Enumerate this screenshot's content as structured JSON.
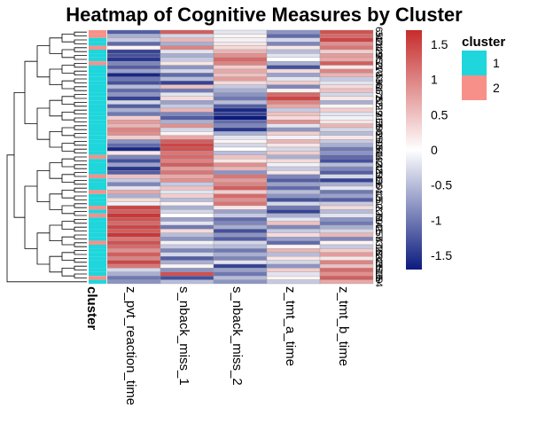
{
  "chart_data": {
    "type": "heatmap",
    "title": "Heatmap of Cognitive Measures by Cluster",
    "columns": [
      "z_pvt_reaction_time",
      "s_nback_miss_1",
      "s_nback_miss_2",
      "z_tmt_a_time",
      "z_tmt_b_time"
    ],
    "annotation_label": "cluster",
    "annotation_legend": {
      "title": "cluster",
      "levels": [
        "1",
        "2"
      ],
      "colors": [
        "#1ed6db",
        "#f8908a"
      ]
    },
    "color_scale": {
      "min": -1.7,
      "mid": 0,
      "max": 1.7,
      "colors": [
        "#0b1b7e",
        "#ffffff",
        "#c62c2c"
      ],
      "ticks": [
        1.5,
        1,
        0.5,
        0,
        -0.5,
        -1,
        -1.5
      ]
    },
    "row_labels": [
      "65",
      "31",
      "40",
      "24",
      "12",
      "49",
      "9",
      "33",
      "53",
      "27",
      "10",
      "4",
      "58",
      "36",
      "44",
      "17",
      "62",
      "8",
      "55",
      "21",
      "29",
      "2",
      "46",
      "13",
      "38",
      "50",
      "6",
      "26",
      "59",
      "15",
      "34",
      "61",
      "19",
      "42",
      "3",
      "48",
      "23",
      "56",
      "11",
      "30",
      "64",
      "1",
      "45",
      "20",
      "52",
      "7",
      "37",
      "28",
      "60",
      "14",
      "41",
      "25",
      "57",
      "5",
      "47",
      "32",
      "18",
      "63",
      "22",
      "43",
      "35",
      "51",
      "16",
      "39",
      "54"
    ],
    "clusters": [
      2,
      2,
      1,
      1,
      2,
      1,
      1,
      1,
      2,
      1,
      1,
      1,
      1,
      1,
      1,
      1,
      1,
      1,
      1,
      1,
      1,
      1,
      1,
      1,
      1,
      1,
      1,
      1,
      1,
      1,
      1,
      1,
      2,
      1,
      1,
      1,
      1,
      2,
      1,
      1,
      1,
      2,
      1,
      1,
      1,
      2,
      1,
      2,
      1,
      1,
      1,
      1,
      1,
      1,
      2,
      1,
      1,
      1,
      1,
      1,
      1,
      1,
      1,
      2,
      1
    ],
    "values": [
      [
        -1.2,
        1.3,
        -0.2,
        -0.8,
        1.4
      ],
      [
        -0.6,
        -0.3,
        0.1,
        -1.1,
        1.2
      ],
      [
        -0.4,
        0.6,
        -0.1,
        -0.3,
        1.5
      ],
      [
        -1.1,
        -0.6,
        0.2,
        -0.9,
        0.9
      ],
      [
        0.1,
        1.0,
        0.3,
        0.2,
        1.1
      ],
      [
        -1.4,
        -0.2,
        0.6,
        -0.5,
        0.4
      ],
      [
        -1.3,
        -0.6,
        0.9,
        -0.2,
        0.8
      ],
      [
        -1.5,
        -0.4,
        1.2,
        0.0,
        0.7
      ],
      [
        -0.9,
        0.2,
        1.0,
        -0.6,
        1.3
      ],
      [
        -1.2,
        -0.8,
        0.4,
        -1.3,
        0.2
      ],
      [
        -0.7,
        -0.3,
        0.7,
        0.3,
        1.0
      ],
      [
        -1.6,
        -1.1,
        0.5,
        -0.7,
        0.6
      ],
      [
        -1.0,
        -0.5,
        0.8,
        -0.2,
        -0.4
      ],
      [
        -1.3,
        -1.4,
        0.3,
        0.4,
        -0.2
      ],
      [
        -0.5,
        0.5,
        -0.4,
        -0.9,
        0.3
      ],
      [
        -1.1,
        -1.0,
        -0.6,
        0.1,
        0.5
      ],
      [
        -0.8,
        -0.2,
        -0.8,
        1.2,
        -0.3
      ],
      [
        -1.4,
        0.3,
        -1.0,
        1.5,
        0.2
      ],
      [
        -0.3,
        -0.7,
        -0.5,
        1.0,
        -0.6
      ],
      [
        -1.2,
        -0.4,
        -1.2,
        0.7,
        0.1
      ],
      [
        -0.6,
        0.6,
        -1.6,
        -0.4,
        0.4
      ],
      [
        -1.0,
        -0.9,
        -1.4,
        0.5,
        -0.2
      ],
      [
        0.4,
        -1.2,
        -1.7,
        0.3,
        -0.1
      ],
      [
        0.8,
        -0.6,
        -1.1,
        0.9,
        0.2
      ],
      [
        0.6,
        0.9,
        -0.9,
        -0.2,
        0.6
      ],
      [
        1.0,
        -0.3,
        -1.5,
        -0.8,
        -0.3
      ],
      [
        0.9,
        0.1,
        -0.6,
        0.4,
        -0.5
      ],
      [
        0.4,
        0.7,
        -0.2,
        -0.1,
        0.2
      ],
      [
        -0.8,
        1.3,
        0.1,
        0.6,
        -0.4
      ],
      [
        -1.1,
        1.5,
        -0.3,
        0.2,
        -0.6
      ],
      [
        -1.6,
        1.4,
        0.0,
        -0.3,
        -1.0
      ],
      [
        0.2,
        1.1,
        -0.5,
        0.4,
        -0.8
      ],
      [
        -0.9,
        1.2,
        0.5,
        -0.6,
        -1.1
      ],
      [
        -1.3,
        1.0,
        0.2,
        0.3,
        -1.3
      ],
      [
        -0.7,
        1.3,
        0.9,
        -0.1,
        -0.5
      ],
      [
        -1.5,
        0.8,
        0.6,
        -0.4,
        -0.9
      ],
      [
        -1.2,
        1.1,
        -0.8,
        0.2,
        -1.2
      ],
      [
        0.5,
        0.7,
        1.1,
        -0.9,
        -0.3
      ],
      [
        -0.4,
        0.9,
        0.8,
        -1.2,
        -1.4
      ],
      [
        -0.9,
        -0.4,
        1.0,
        -0.7,
        -0.6
      ],
      [
        -0.2,
        0.5,
        1.3,
        -1.1,
        -0.2
      ],
      [
        0.7,
        -0.2,
        0.4,
        -0.5,
        -1.0
      ],
      [
        -0.6,
        0.4,
        1.2,
        -0.8,
        -0.7
      ],
      [
        0.3,
        -0.5,
        0.9,
        -1.3,
        -1.2
      ],
      [
        -0.1,
        0.1,
        1.1,
        -0.3,
        -0.4
      ],
      [
        1.5,
        -0.6,
        0.2,
        -1.0,
        0.3
      ],
      [
        1.3,
        -0.3,
        -0.7,
        -1.4,
        -0.5
      ],
      [
        1.6,
        0.0,
        -0.4,
        -0.6,
        -0.2
      ],
      [
        1.4,
        -0.7,
        -1.1,
        -0.2,
        -0.8
      ],
      [
        1.2,
        -0.2,
        -0.9,
        0.5,
        -1.0
      ],
      [
        1.5,
        -1.0,
        -0.6,
        -0.9,
        -0.6
      ],
      [
        1.3,
        0.3,
        -1.3,
        -0.4,
        -0.3
      ],
      [
        1.6,
        -0.5,
        -0.8,
        0.3,
        0.6
      ],
      [
        1.1,
        -0.8,
        -1.2,
        -0.7,
        -0.9
      ],
      [
        1.4,
        -0.1,
        -0.3,
        -1.1,
        0.1
      ],
      [
        1.2,
        -0.4,
        -0.5,
        0.1,
        -0.4
      ],
      [
        0.9,
        -0.9,
        -1.0,
        0.6,
        0.4
      ],
      [
        1.3,
        -0.3,
        -0.6,
        -0.5,
        0.8
      ],
      [
        1.0,
        -1.2,
        -0.9,
        0.2,
        0.2
      ],
      [
        1.5,
        -0.6,
        -0.2,
        -0.3,
        1.0
      ],
      [
        1.1,
        0.1,
        -1.4,
        -0.8,
        0.5
      ],
      [
        -0.3,
        -0.8,
        -0.7,
        0.4,
        1.2
      ],
      [
        -0.6,
        1.4,
        -1.0,
        -0.2,
        0.9
      ],
      [
        -1.0,
        -1.3,
        -0.5,
        0.1,
        1.3
      ],
      [
        -0.8,
        -0.5,
        -0.8,
        -0.4,
        0.7
      ]
    ]
  }
}
